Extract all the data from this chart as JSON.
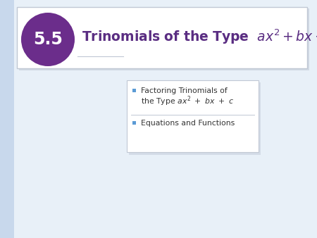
{
  "page_bg": "#e8f0f8",
  "left_stripe_color": "#c8d8ec",
  "header_box_bg": "#ffffff",
  "header_box_edge": "#c0c8d4",
  "circle_color": "#6b2d8b",
  "circle_text": "5.5",
  "circle_text_color": "#ffffff",
  "title_color": "#5a2d82",
  "bullet_box_bg": "#ffffff",
  "bullet_box_edge": "#c0c8d4",
  "bullet_color": "#5b9bd5",
  "bullet2": "Equations and Functions",
  "divider_color": "#c0c8d4",
  "underline_color": "#c0c8d4",
  "shadow_color": "#b0b8c8"
}
